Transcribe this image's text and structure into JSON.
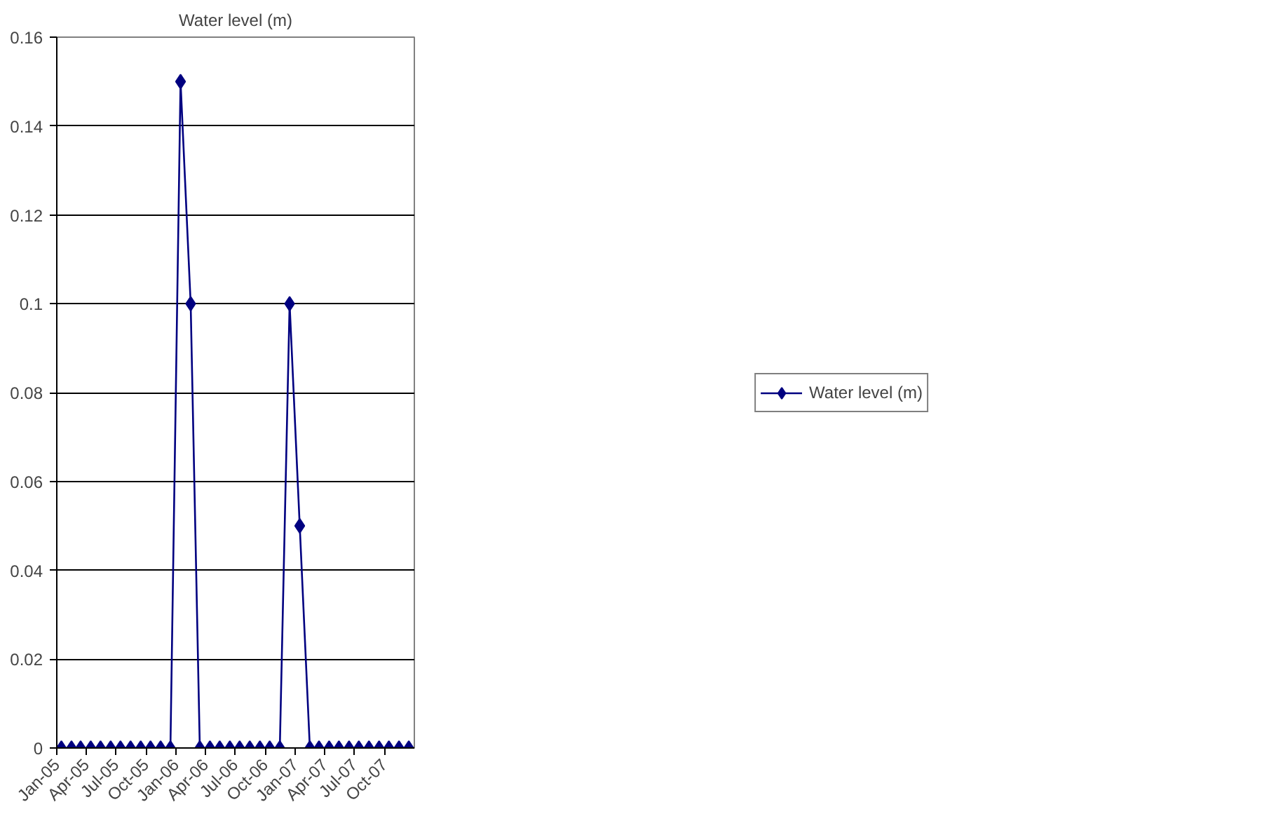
{
  "chart_data": {
    "type": "line",
    "title": "Water level (m)",
    "x": [
      "2005-01-15",
      "2005-02-15",
      "2005-03-15",
      "2005-04-15",
      "2005-05-15",
      "2005-06-15",
      "2005-07-15",
      "2005-08-15",
      "2005-09-15",
      "2005-10-15",
      "2005-11-15",
      "2005-12-15",
      "2006-01-15",
      "2006-02-15",
      "2006-03-15",
      "2006-04-15",
      "2006-05-15",
      "2006-06-15",
      "2006-07-15",
      "2006-08-15",
      "2006-09-15",
      "2006-10-15",
      "2006-11-15",
      "2006-12-15",
      "2007-01-15",
      "2007-02-15",
      "2007-03-15",
      "2007-04-15",
      "2007-05-15",
      "2007-06-15",
      "2007-07-15",
      "2007-08-15",
      "2007-09-15",
      "2007-10-15",
      "2007-11-15",
      "2007-12-15"
    ],
    "series": [
      {
        "name": "Water level (m)",
        "color": "#000080",
        "values": [
          0,
          0,
          0,
          0,
          0,
          0,
          0,
          0,
          0,
          0,
          0,
          0,
          0.15,
          0.1,
          0,
          0,
          0,
          0,
          0,
          0,
          0,
          0,
          0,
          0.1,
          0.05,
          0,
          0,
          0,
          0,
          0,
          0,
          0,
          0,
          0,
          0,
          0
        ]
      }
    ],
    "xlim": [
      "2005-01-01",
      "2008-01-01"
    ],
    "xticks": [
      {
        "value": "2005-01-01",
        "label": "Jan-05"
      },
      {
        "value": "2005-04-01",
        "label": "Apr-05"
      },
      {
        "value": "2005-07-01",
        "label": "Jul-05"
      },
      {
        "value": "2005-10-01",
        "label": "Oct-05"
      },
      {
        "value": "2006-01-01",
        "label": "Jan-06"
      },
      {
        "value": "2006-04-01",
        "label": "Apr-06"
      },
      {
        "value": "2006-07-01",
        "label": "Jul-06"
      },
      {
        "value": "2006-10-01",
        "label": "Oct-06"
      },
      {
        "value": "2007-01-01",
        "label": "Jan-07"
      },
      {
        "value": "2007-04-01",
        "label": "Apr-07"
      },
      {
        "value": "2007-07-01",
        "label": "Jul-07"
      },
      {
        "value": "2007-10-01",
        "label": "Oct-07"
      }
    ],
    "ylim": [
      0,
      0.16
    ],
    "yticks": [
      0,
      0.02,
      0.04,
      0.06,
      0.08,
      0.1,
      0.12,
      0.14,
      0.16
    ],
    "grid": "y",
    "legend": "right",
    "marker": "diamond",
    "line_style": "solid"
  }
}
